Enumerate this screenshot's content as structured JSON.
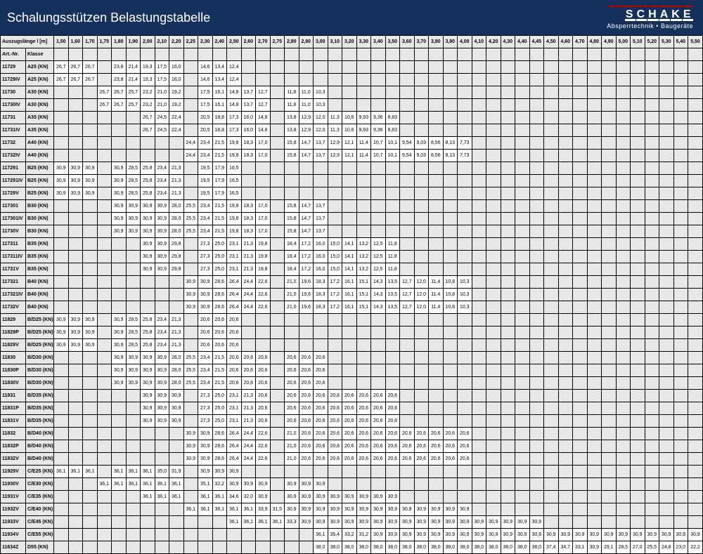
{
  "header": {
    "title": "Schalungsstützen Belastungstabelle",
    "brand": "SCHAKE",
    "tag": "Absperrtechnik • Baugeräte"
  },
  "background": "#15305b",
  "alt_bg": "#e8e8e8",
  "table": {
    "top_label": "Auszugslänge l [m]",
    "columns": [
      "1,50",
      "1,60",
      "1,70",
      "1,75",
      "1,80",
      "1,90",
      "2,00",
      "2,10",
      "2,20",
      "2,25",
      "2,30",
      "2,40",
      "2,50",
      "2,60",
      "2,70",
      "2,75",
      "2,80",
      "2,90",
      "3,00",
      "3,10",
      "3,20",
      "3,30",
      "3,40",
      "3,50",
      "3,60",
      "3,70",
      "3,80",
      "3,90",
      "4,00",
      "4,10",
      "4,20",
      "4,30",
      "4,40",
      "4,45",
      "4,50",
      "4,60",
      "4,70",
      "4,80",
      "4,90",
      "5,00",
      "5,10",
      "5,20",
      "5,30",
      "5,40",
      "5,50"
    ],
    "hdr": [
      "Art.-Nr.",
      "Klasse"
    ],
    "rows": [
      [
        "11729",
        "A25 (KN)",
        {
          "0": "26,7",
          "1": "26,7",
          "2": "26,7",
          "4": "23,8",
          "5": "21,4",
          "6": "19,3",
          "7": "17,5",
          "8": "16,0",
          "10": "14,6",
          "11": "13,4",
          "12": "12,4"
        }
      ],
      [
        "11729IV",
        "A25 (KN)",
        {
          "0": "26,7",
          "1": "26,7",
          "2": "26,7",
          "4": "23,8",
          "5": "21,4",
          "6": "19,3",
          "7": "17,5",
          "8": "16,0",
          "10": "14,6",
          "11": "13,4",
          "12": "12,4"
        }
      ],
      [
        "11730",
        "A30 (KN)",
        {
          "3": "26,7",
          "4": "26,7",
          "5": "25,7",
          "6": "23,2",
          "7": "21,0",
          "8": "19,2",
          "10": "17,5",
          "11": "16,1",
          "12": "14,8",
          "13": "13,7",
          "14": "12,7",
          "16": "11,8",
          "17": "11,0",
          "18": "10,3"
        }
      ],
      [
        "11730IV",
        "A30 (KN)",
        {
          "3": "26,7",
          "4": "26,7",
          "5": "25,7",
          "6": "23,2",
          "7": "21,0",
          "8": "19,2",
          "10": "17,5",
          "11": "16,1",
          "12": "14,8",
          "13": "13,7",
          "14": "12,7",
          "16": "11,8",
          "17": "11,0",
          "18": "10,3"
        }
      ],
      [
        "11731",
        "A35 (KN)",
        {
          "6": "26,7",
          "7": "24,5",
          "8": "22,4",
          "10": "20,5",
          "11": "18,8",
          "12": "17,3",
          "13": "16,0",
          "14": "14,8",
          "16": "13,8",
          "17": "12,9",
          "18": "12,0",
          "19": "11,3",
          "20": "10,6",
          "21": "9,93",
          "22": "9,36",
          "23": "8,83"
        }
      ],
      [
        "11731IV",
        "A35 (KN)",
        {
          "6": "26,7",
          "7": "24,5",
          "8": "22,4",
          "10": "20,5",
          "11": "18,8",
          "12": "17,3",
          "13": "16,0",
          "14": "14,8",
          "16": "13,8",
          "17": "12,9",
          "18": "12,0",
          "19": "11,3",
          "20": "10,6",
          "21": "9,93",
          "22": "9,36",
          "23": "8,83"
        }
      ],
      [
        "11732",
        "A40 (KN)",
        {
          "9": "24,4",
          "10": "23,4",
          "11": "21,5",
          "12": "19,8",
          "13": "18,3",
          "14": "17,0",
          "16": "15,8",
          "17": "14,7",
          "18": "13,7",
          "19": "12,9",
          "20": "12,1",
          "21": "11,4",
          "22": "10,7",
          "23": "10,1",
          "24": "9,54",
          "25": "9,03",
          "26": "8,56",
          "27": "8,13",
          "28": "7,73"
        }
      ],
      [
        "11732IV",
        "A40 (KN)",
        {
          "9": "24,4",
          "10": "23,4",
          "11": "21,5",
          "12": "19,8",
          "13": "18,3",
          "14": "17,0",
          "16": "15,8",
          "17": "14,7",
          "18": "13,7",
          "19": "12,9",
          "20": "12,1",
          "21": "11,4",
          "22": "10,7",
          "23": "10,1",
          "24": "9,54",
          "25": "9,03",
          "26": "8,56",
          "27": "8,13",
          "28": "7,73"
        }
      ],
      [
        "117291",
        "B25 (KN)",
        {
          "0": "30,9",
          "1": "30,9",
          "2": "30,9",
          "4": "30,9",
          "5": "28,5",
          "6": "25,8",
          "7": "23,4",
          "8": "21,3",
          "10": "19,5",
          "11": "17,9",
          "12": "16,5"
        }
      ],
      [
        "117291IV",
        "B25 (KN)",
        {
          "0": "30,9",
          "1": "30,9",
          "2": "30,9",
          "4": "30,9",
          "5": "28,5",
          "6": "25,8",
          "7": "23,4",
          "8": "21,3",
          "10": "19,5",
          "11": "17,9",
          "12": "16,5"
        }
      ],
      [
        "11729V",
        "B25 (KN)",
        {
          "0": "30,9",
          "1": "30,9",
          "2": "30,9",
          "4": "30,9",
          "5": "28,5",
          "6": "25,8",
          "7": "23,4",
          "8": "21,3",
          "10": "19,5",
          "11": "17,9",
          "12": "16,5"
        }
      ],
      [
        "117301",
        "B30 (KN)",
        {
          "4": "30,9",
          "5": "30,9",
          "6": "30,9",
          "7": "30,9",
          "8": "28,0",
          "9": "25,5",
          "10": "23,4",
          "11": "21,5",
          "12": "19,8",
          "13": "18,3",
          "14": "17,0",
          "16": "15,8",
          "17": "14,7",
          "18": "13,7"
        }
      ],
      [
        "117301IV",
        "B30 (KN)",
        {
          "4": "30,9",
          "5": "30,9",
          "6": "30,9",
          "7": "30,9",
          "8": "28,0",
          "9": "25,5",
          "10": "23,4",
          "11": "21,5",
          "12": "19,8",
          "13": "18,3",
          "14": "17,0",
          "16": "15,8",
          "17": "14,7",
          "18": "13,7"
        }
      ],
      [
        "11730V",
        "B30 (KN)",
        {
          "4": "30,9",
          "5": "30,9",
          "6": "30,9",
          "7": "30,9",
          "8": "28,0",
          "9": "25,5",
          "10": "23,4",
          "11": "21,5",
          "12": "19,8",
          "13": "18,3",
          "14": "17,0",
          "16": "15,8",
          "17": "14,7",
          "18": "13,7"
        }
      ],
      [
        "117311",
        "B35 (KN)",
        {
          "6": "30,9",
          "7": "30,9",
          "8": "29,8",
          "10": "27,3",
          "11": "25,0",
          "12": "23,1",
          "13": "21,3",
          "14": "19,8",
          "16": "18,4",
          "17": "17,2",
          "18": "16,0",
          "19": "15,0",
          "20": "14,1",
          "21": "13,2",
          "22": "12,5",
          "23": "11,8"
        }
      ],
      [
        "117311IV",
        "B35 (KN)",
        {
          "6": "30,9",
          "7": "30,9",
          "8": "29,8",
          "10": "27,3",
          "11": "25,0",
          "12": "23,1",
          "13": "21,3",
          "14": "19,8",
          "16": "18,4",
          "17": "17,2",
          "18": "16,0",
          "19": "15,0",
          "20": "14,1",
          "21": "13,2",
          "22": "12,5",
          "23": "11,8"
        }
      ],
      [
        "11731V",
        "B35 (KN)",
        {
          "6": "30,9",
          "7": "30,9",
          "8": "29,8",
          "10": "27,3",
          "11": "25,0",
          "12": "23,1",
          "13": "21,3",
          "14": "19,8",
          "16": "18,4",
          "17": "17,2",
          "18": "16,0",
          "19": "15,0",
          "20": "14,1",
          "21": "13,2",
          "22": "12,5",
          "23": "11,8"
        }
      ],
      [
        "117321",
        "B40 (KN)",
        {
          "9": "30,9",
          "10": "30,9",
          "11": "28,6",
          "12": "26,4",
          "13": "24,4",
          "14": "22,6",
          "16": "21,0",
          "17": "19,6",
          "18": "18,3",
          "19": "17,2",
          "20": "16,1",
          "21": "15,1",
          "22": "14,3",
          "23": "13,5",
          "24": "12,7",
          "25": "12,0",
          "26": "11,4",
          "27": "10,8",
          "28": "10,3"
        }
      ],
      [
        "117321IV",
        "B40 (KN)",
        {
          "9": "30,9",
          "10": "30,9",
          "11": "28,6",
          "12": "26,4",
          "13": "24,4",
          "14": "22,6",
          "16": "21,0",
          "17": "19,6",
          "18": "18,3",
          "19": "17,2",
          "20": "16,1",
          "21": "15,1",
          "22": "14,3",
          "23": "13,5",
          "24": "12,7",
          "25": "12,0",
          "26": "11,4",
          "27": "10,8",
          "28": "10,3"
        }
      ],
      [
        "11732V",
        "B40 (KN)",
        {
          "9": "30,9",
          "10": "30,9",
          "11": "28,6",
          "12": "26,4",
          "13": "24,4",
          "14": "22,6",
          "16": "21,0",
          "17": "19,6",
          "18": "18,3",
          "19": "17,2",
          "20": "16,1",
          "21": "15,1",
          "22": "14,3",
          "23": "13,5",
          "24": "12,7",
          "25": "12,0",
          "26": "11,4",
          "27": "10,8",
          "28": "10,3"
        }
      ],
      [
        "11829",
        "B/D25 (KN)",
        {
          "0": "30,9",
          "1": "30,9",
          "2": "30,9",
          "4": "30,9",
          "5": "28,5",
          "6": "25,8",
          "7": "23,4",
          "8": "21,3",
          "10": "20,6",
          "11": "20,6",
          "12": "20,6"
        }
      ],
      [
        "11829P",
        "B/D25 (KN)",
        {
          "0": "30,9",
          "1": "30,9",
          "2": "30,9",
          "4": "30,9",
          "5": "28,5",
          "6": "25,8",
          "7": "23,4",
          "8": "21,3",
          "10": "20,6",
          "11": "20,6",
          "12": "20,6"
        }
      ],
      [
        "11829V",
        "B/D25 (KN)",
        {
          "0": "30,9",
          "1": "30,9",
          "2": "30,9",
          "4": "30,9",
          "5": "28,5",
          "6": "25,8",
          "7": "23,4",
          "8": "21,3",
          "10": "20,6",
          "11": "20,6",
          "12": "20,6"
        }
      ],
      [
        "11830",
        "B/D30 (KN)",
        {
          "4": "30,9",
          "5": "30,9",
          "6": "30,9",
          "7": "30,9",
          "8": "28,0",
          "9": "25,5",
          "10": "23,4",
          "11": "21,5",
          "12": "20,6",
          "13": "20,6",
          "14": "20,6",
          "16": "20,6",
          "17": "20,6",
          "18": "20,6"
        }
      ],
      [
        "11830P",
        "B/D30 (KN)",
        {
          "4": "30,9",
          "5": "30,9",
          "6": "30,9",
          "7": "30,9",
          "8": "28,0",
          "9": "25,5",
          "10": "23,4",
          "11": "21,5",
          "12": "20,6",
          "13": "20,6",
          "14": "20,6",
          "16": "20,6",
          "17": "20,6",
          "18": "20,6"
        }
      ],
      [
        "11830V",
        "B/D30 (KN)",
        {
          "4": "30,9",
          "5": "30,9",
          "6": "30,9",
          "7": "30,9",
          "8": "28,0",
          "9": "25,5",
          "10": "23,4",
          "11": "21,5",
          "12": "20,6",
          "13": "20,6",
          "14": "20,6",
          "16": "20,6",
          "17": "20,6",
          "18": "20,6"
        }
      ],
      [
        "11831",
        "B/D35 (KN)",
        {
          "6": "30,9",
          "7": "30,9",
          "8": "30,9",
          "10": "27,3",
          "11": "25,0",
          "12": "23,1",
          "13": "21,3",
          "14": "20,6",
          "16": "20,6",
          "17": "20,6",
          "18": "20,6",
          "19": "20,6",
          "20": "20,6",
          "21": "20,6",
          "22": "20,6",
          "23": "20,6"
        }
      ],
      [
        "11831P",
        "B/D35 (KN)",
        {
          "6": "30,9",
          "7": "30,9",
          "8": "30,9",
          "10": "27,3",
          "11": "25,0",
          "12": "23,1",
          "13": "21,3",
          "14": "20,6",
          "16": "20,6",
          "17": "20,6",
          "18": "20,6",
          "19": "20,6",
          "20": "20,6",
          "21": "20,6",
          "22": "20,6",
          "23": "20,6"
        }
      ],
      [
        "11831V",
        "B/D35 (KN)",
        {
          "6": "30,9",
          "7": "30,9",
          "8": "30,9",
          "10": "27,3",
          "11": "25,0",
          "12": "23,1",
          "13": "21,3",
          "14": "20,6",
          "16": "20,6",
          "17": "20,6",
          "18": "20,6",
          "19": "20,6",
          "20": "20,6",
          "21": "20,6",
          "22": "20,6",
          "23": "20,6"
        }
      ],
      [
        "11832",
        "B/D40 (KN)",
        {
          "9": "30,9",
          "10": "30,9",
          "11": "28,6",
          "12": "26,4",
          "13": "24,4",
          "14": "22,6",
          "16": "21,0",
          "17": "20,6",
          "18": "20,6",
          "19": "20,6",
          "20": "20,6",
          "21": "20,6",
          "22": "20,6",
          "23": "20,6",
          "24": "20,6",
          "25": "20,6",
          "26": "20,6",
          "27": "20,6",
          "28": "20,6"
        }
      ],
      [
        "11832P",
        "B/D40 (KN)",
        {
          "9": "30,9",
          "10": "30,9",
          "11": "28,6",
          "12": "26,4",
          "13": "24,4",
          "14": "22,6",
          "16": "21,0",
          "17": "20,6",
          "18": "20,6",
          "19": "20,6",
          "20": "20,6",
          "21": "20,6",
          "22": "20,6",
          "23": "20,6",
          "24": "20,6",
          "25": "20,6",
          "26": "20,6",
          "27": "20,6",
          "28": "20,6"
        }
      ],
      [
        "11832V",
        "B/D40 (KN)",
        {
          "9": "30,9",
          "10": "30,9",
          "11": "28,6",
          "12": "26,4",
          "13": "24,4",
          "14": "22,6",
          "16": "21,0",
          "17": "20,6",
          "18": "20,6",
          "19": "20,6",
          "20": "20,6",
          "21": "20,6",
          "22": "20,6",
          "23": "20,6",
          "24": "20,6",
          "25": "20,6",
          "26": "20,6",
          "27": "20,6",
          "28": "20,6"
        }
      ],
      [
        "11929V",
        "C/E25 (KN)",
        {
          "0": "36,1",
          "1": "36,1",
          "2": "36,1",
          "4": "36,1",
          "5": "36,1",
          "6": "36,1",
          "7": "35,0",
          "8": "31,9",
          "10": "30,9",
          "11": "30,9",
          "12": "30,9"
        }
      ],
      [
        "11930V",
        "C/E30 (KN)",
        {
          "3": "36,1",
          "4": "36,1",
          "5": "36,1",
          "6": "36,1",
          "7": "36,1",
          "8": "36,1",
          "10": "35,1",
          "11": "32,2",
          "12": "30,9",
          "13": "30,9",
          "14": "30,9",
          "16": "30,9",
          "17": "30,9",
          "18": "30,9"
        }
      ],
      [
        "11931V",
        "C/E35 (KN)",
        {
          "6": "36,1",
          "7": "36,1",
          "8": "36,1",
          "10": "36,1",
          "11": "36,1",
          "12": "34,6",
          "13": "32,0",
          "14": "30,9",
          "16": "30,9",
          "17": "30,9",
          "18": "30,9",
          "19": "30,9",
          "20": "30,9",
          "21": "30,9",
          "22": "30,9",
          "23": "30,9"
        }
      ],
      [
        "11932V",
        "C/E40 (KN)",
        {
          "9": "36,1",
          "10": "36,1",
          "11": "36,1",
          "12": "36,1",
          "13": "36,1",
          "14": "33,9",
          "15": "31,5",
          "16": "30,9",
          "17": "30,9",
          "18": "30,9",
          "19": "30,9",
          "20": "30,9",
          "21": "30,9",
          "22": "30,9",
          "23": "30,9",
          "24": "30,9",
          "25": "30,9",
          "26": "30,9",
          "27": "30,9",
          "28": "30,9"
        }
      ],
      [
        "11933V",
        "C/E45 (KN)",
        {
          "12": "36,1",
          "13": "36,1",
          "14": "36,1",
          "15": "36,1",
          "16": "33,3",
          "17": "30,9",
          "18": "30,9",
          "19": "30,9",
          "20": "30,9",
          "21": "30,9",
          "22": "30,9",
          "23": "30,9",
          "24": "30,9",
          "25": "30,9",
          "26": "30,9",
          "27": "30,9",
          "28": "30,9",
          "29": "30,9",
          "30": "30,9",
          "31": "30,9",
          "32": "30,9",
          "33": "30,9"
        }
      ],
      [
        "11934V",
        "C/E55 (KN)",
        {
          "18": "36,1",
          "19": "35,4",
          "20": "33,2",
          "21": "31,2",
          "22": "30,9",
          "23": "30,9",
          "24": "30,9",
          "25": "30,9",
          "26": "30,9",
          "27": "30,9",
          "28": "30,9",
          "29": "30,9",
          "30": "30,9",
          "31": "30,9",
          "32": "30,9",
          "33": "30,9",
          "34": "30,9",
          "35": "30,9",
          "36": "30,9",
          "37": "30,9",
          "38": "30,9",
          "39": "30,9",
          "40": "30,9",
          "41": "30,9",
          "42": "30,9",
          "43": "30,9",
          "44": "30,9"
        }
      ],
      [
        "11634Z",
        "D55 (KN)",
        {
          "18": "38,0",
          "19": "38,0",
          "20": "38,0",
          "21": "38,0",
          "22": "38,0",
          "23": "38,0",
          "24": "38,0",
          "25": "38,0",
          "26": "38,0",
          "27": "38,0",
          "28": "38,0",
          "29": "38,0",
          "30": "38,0",
          "31": "38,0",
          "32": "38,0",
          "33": "38,0",
          "34": "37,4",
          "35": "34,7",
          "36": "33,1",
          "37": "30,9",
          "38": "29,1",
          "39": "28,5",
          "40": "27,0",
          "41": "25,5",
          "42": "24,8",
          "43": "23,0",
          "44": "22,2"
        }
      ]
    ]
  }
}
